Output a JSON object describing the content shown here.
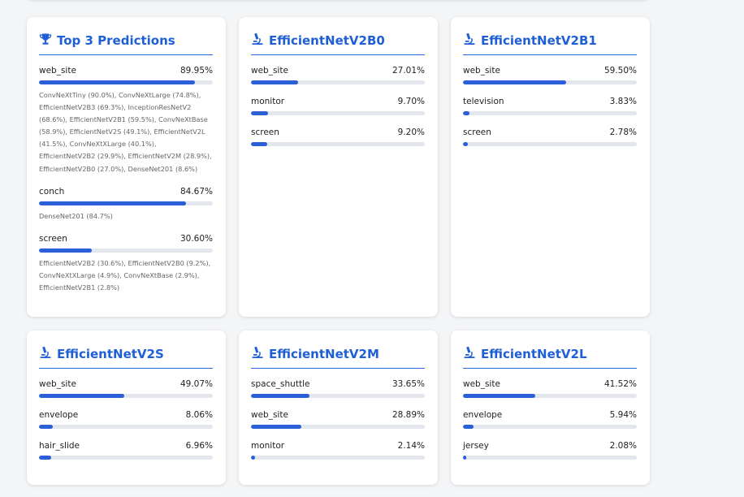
{
  "top3": {
    "title": "Top 3 Predictions",
    "predictions": [
      {
        "label": "web_site",
        "value": "89.95%",
        "fraction": 0.8995,
        "models": "ConvNeXtTiny (90.0%), ConvNeXtLarge (74.8%), EfficientNetV2B3 (69.3%), InceptionResNetV2 (68.6%), EfficientNetV2B1 (59.5%), ConvNeXtBase (58.9%), EfficientNetV2S (49.1%), EfficientNetV2L (41.5%), ConvNeXtXLarge (40.1%), EfficientNetV2B2 (29.9%), EfficientNetV2M (28.9%), EfficientNetV2B0 (27.0%), DenseNet201 (8.6%)"
      },
      {
        "label": "conch",
        "value": "84.67%",
        "fraction": 0.8467,
        "models": "DenseNet201 (84.7%)"
      },
      {
        "label": "screen",
        "value": "30.60%",
        "fraction": 0.306,
        "models": "EfficientNetV2B2 (30.6%), EfficientNetV2B0 (9.2%), ConvNeXtXLarge (4.9%), ConvNeXtBase (2.9%), EfficientNetV2B1 (2.8%)"
      }
    ]
  },
  "models": [
    {
      "title": "EfficientNetV2B0",
      "predictions": [
        {
          "label": "web_site",
          "value": "27.01%",
          "fraction": 0.2701
        },
        {
          "label": "monitor",
          "value": "9.70%",
          "fraction": 0.097
        },
        {
          "label": "screen",
          "value": "9.20%",
          "fraction": 0.092
        }
      ]
    },
    {
      "title": "EfficientNetV2B1",
      "predictions": [
        {
          "label": "web_site",
          "value": "59.50%",
          "fraction": 0.595
        },
        {
          "label": "television",
          "value": "3.83%",
          "fraction": 0.0383
        },
        {
          "label": "screen",
          "value": "2.78%",
          "fraction": 0.0278
        }
      ]
    },
    {
      "title": "EfficientNetV2S",
      "predictions": [
        {
          "label": "web_site",
          "value": "49.07%",
          "fraction": 0.4907
        },
        {
          "label": "envelope",
          "value": "8.06%",
          "fraction": 0.0806
        },
        {
          "label": "hair_slide",
          "value": "6.96%",
          "fraction": 0.0696
        }
      ]
    },
    {
      "title": "EfficientNetV2M",
      "predictions": [
        {
          "label": "space_shuttle",
          "value": "33.65%",
          "fraction": 0.3365
        },
        {
          "label": "web_site",
          "value": "28.89%",
          "fraction": 0.2889
        },
        {
          "label": "monitor",
          "value": "2.14%",
          "fraction": 0.0214
        }
      ]
    },
    {
      "title": "EfficientNetV2L",
      "predictions": [
        {
          "label": "web_site",
          "value": "41.52%",
          "fraction": 0.4152
        },
        {
          "label": "envelope",
          "value": "5.94%",
          "fraction": 0.0594
        },
        {
          "label": "jersey",
          "value": "2.08%",
          "fraction": 0.0208
        }
      ]
    }
  ],
  "icons": {
    "top3": "trophy-icon",
    "model": "microscope-icon"
  },
  "colors": {
    "accent": "#1f5fd6",
    "bar": "#2a5fd8",
    "track": "#e3e6ec"
  }
}
